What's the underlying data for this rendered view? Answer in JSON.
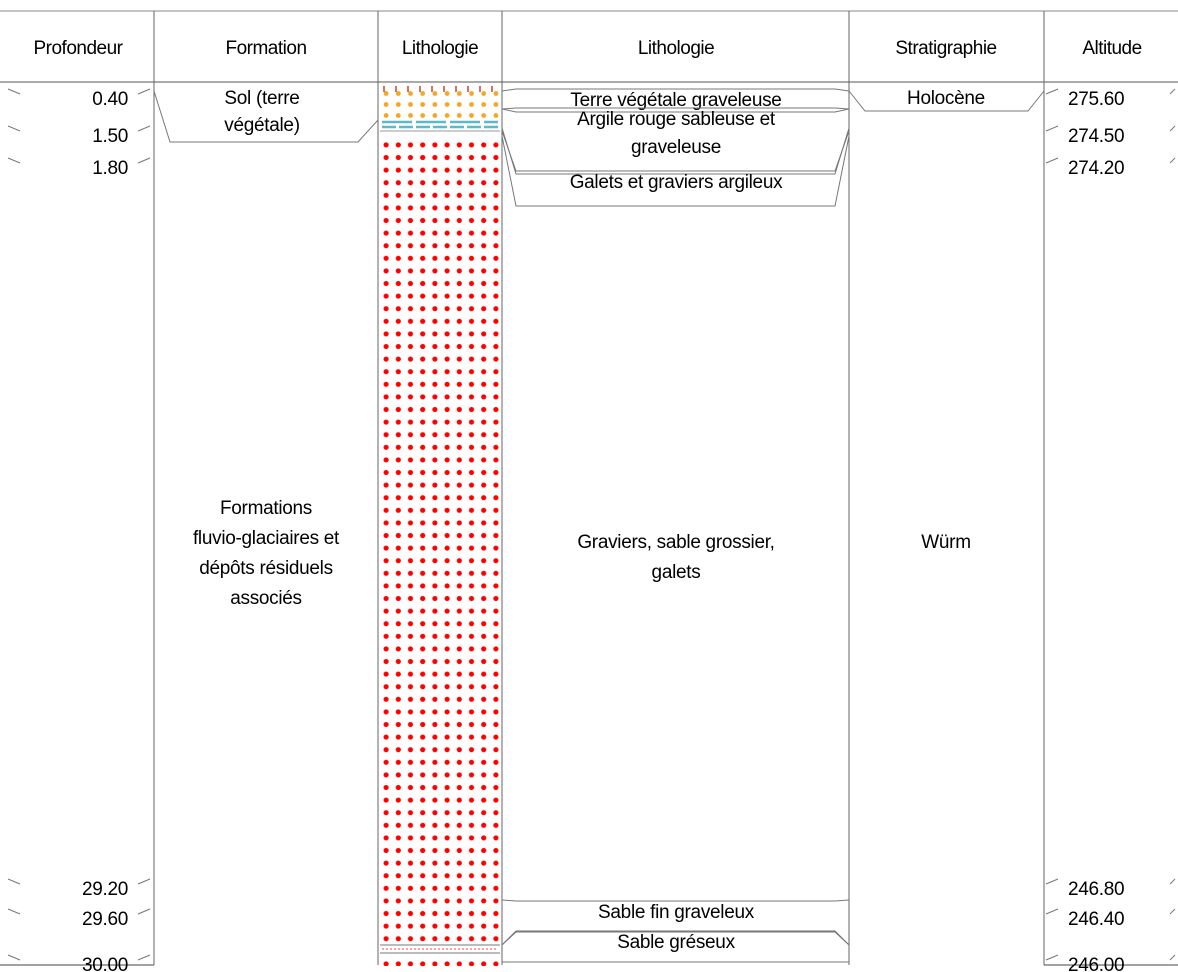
{
  "headers": {
    "depth": "Profondeur",
    "formation": "Formation",
    "lithology_column": "Lithologie",
    "lithology_description": "Lithologie",
    "stratigraphy": "Stratigraphie",
    "altitude": "Altitude"
  },
  "depths": [
    {
      "label": "0.40",
      "value": 0.4
    },
    {
      "label": "1.50",
      "value": 1.5
    },
    {
      "label": "1.80",
      "value": 1.8
    },
    {
      "label": "29.20",
      "value": 29.2
    },
    {
      "label": "29.60",
      "value": 29.6
    },
    {
      "label": "30.00",
      "value": 30.0
    }
  ],
  "altitudes": [
    "275.60",
    "274.50",
    "274.20",
    "246.80",
    "246.40",
    "246.00"
  ],
  "formations": [
    {
      "lines": [
        "Sol (terre",
        "végétale)"
      ],
      "top": 0,
      "bottom": 1.5
    },
    {
      "lines": [
        "Formations",
        "fluvio-glaciaires et",
        "dépôts résiduels",
        "associés"
      ],
      "top": 1.5,
      "bottom": 30.0
    }
  ],
  "lithology_descriptions": [
    {
      "lines": [
        "Terre végétale graveleuse"
      ],
      "top": 0,
      "bottom": 0.4
    },
    {
      "lines": [
        "Argile rouge sableuse et",
        "graveleuse"
      ],
      "top": 0.4,
      "bottom": 1.5
    },
    {
      "lines": [
        "Galets et graviers argileux"
      ],
      "top": 1.5,
      "bottom": 1.8
    },
    {
      "lines": [
        "Graviers, sable grossier,",
        "galets"
      ],
      "top": 1.8,
      "bottom": 29.2
    },
    {
      "lines": [
        "Sable fin graveleux"
      ],
      "top": 29.2,
      "bottom": 29.6
    },
    {
      "lines": [
        "Sable gréseux"
      ],
      "top": 29.6,
      "bottom": 30.0
    }
  ],
  "stratigraphy": [
    {
      "label": "Holocène",
      "top": 0,
      "bottom": 0.4
    },
    {
      "label": "Würm",
      "top": 0.4,
      "bottom": 30.0
    }
  ],
  "colors": {
    "gravel_dot": "#ff0000",
    "orange_dot": "#f5a623",
    "topsoil_mark": "#c0392b",
    "clay_band": "#5fb7c9",
    "line": "#777777",
    "frame": "#444444"
  }
}
